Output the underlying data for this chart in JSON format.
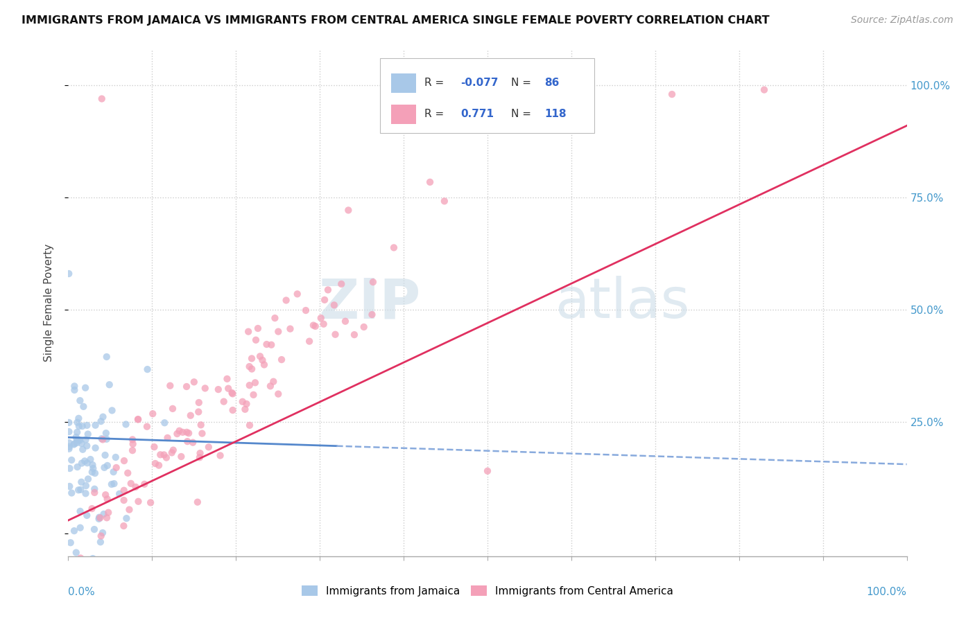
{
  "title": "IMMIGRANTS FROM JAMAICA VS IMMIGRANTS FROM CENTRAL AMERICA SINGLE FEMALE POVERTY CORRELATION CHART",
  "source": "Source: ZipAtlas.com",
  "ylabel": "Single Female Poverty",
  "color_jamaica": "#a8c8e8",
  "color_central": "#f4a0b8",
  "line_jamaica_solid": "#5588cc",
  "line_jamaica_dash": "#88aadd",
  "line_central": "#e03060",
  "background": "#ffffff",
  "watermark_zip": "ZIP",
  "watermark_atlas": "atlas",
  "watermark_color_zip": "#b8cce0",
  "watermark_color_atlas": "#b8cce0",
  "n_jamaica": 86,
  "n_central": 118,
  "r_jamaica": -0.077,
  "r_central": 0.771,
  "xlim": [
    0.0,
    1.0
  ],
  "ylim": [
    -0.05,
    1.08
  ]
}
